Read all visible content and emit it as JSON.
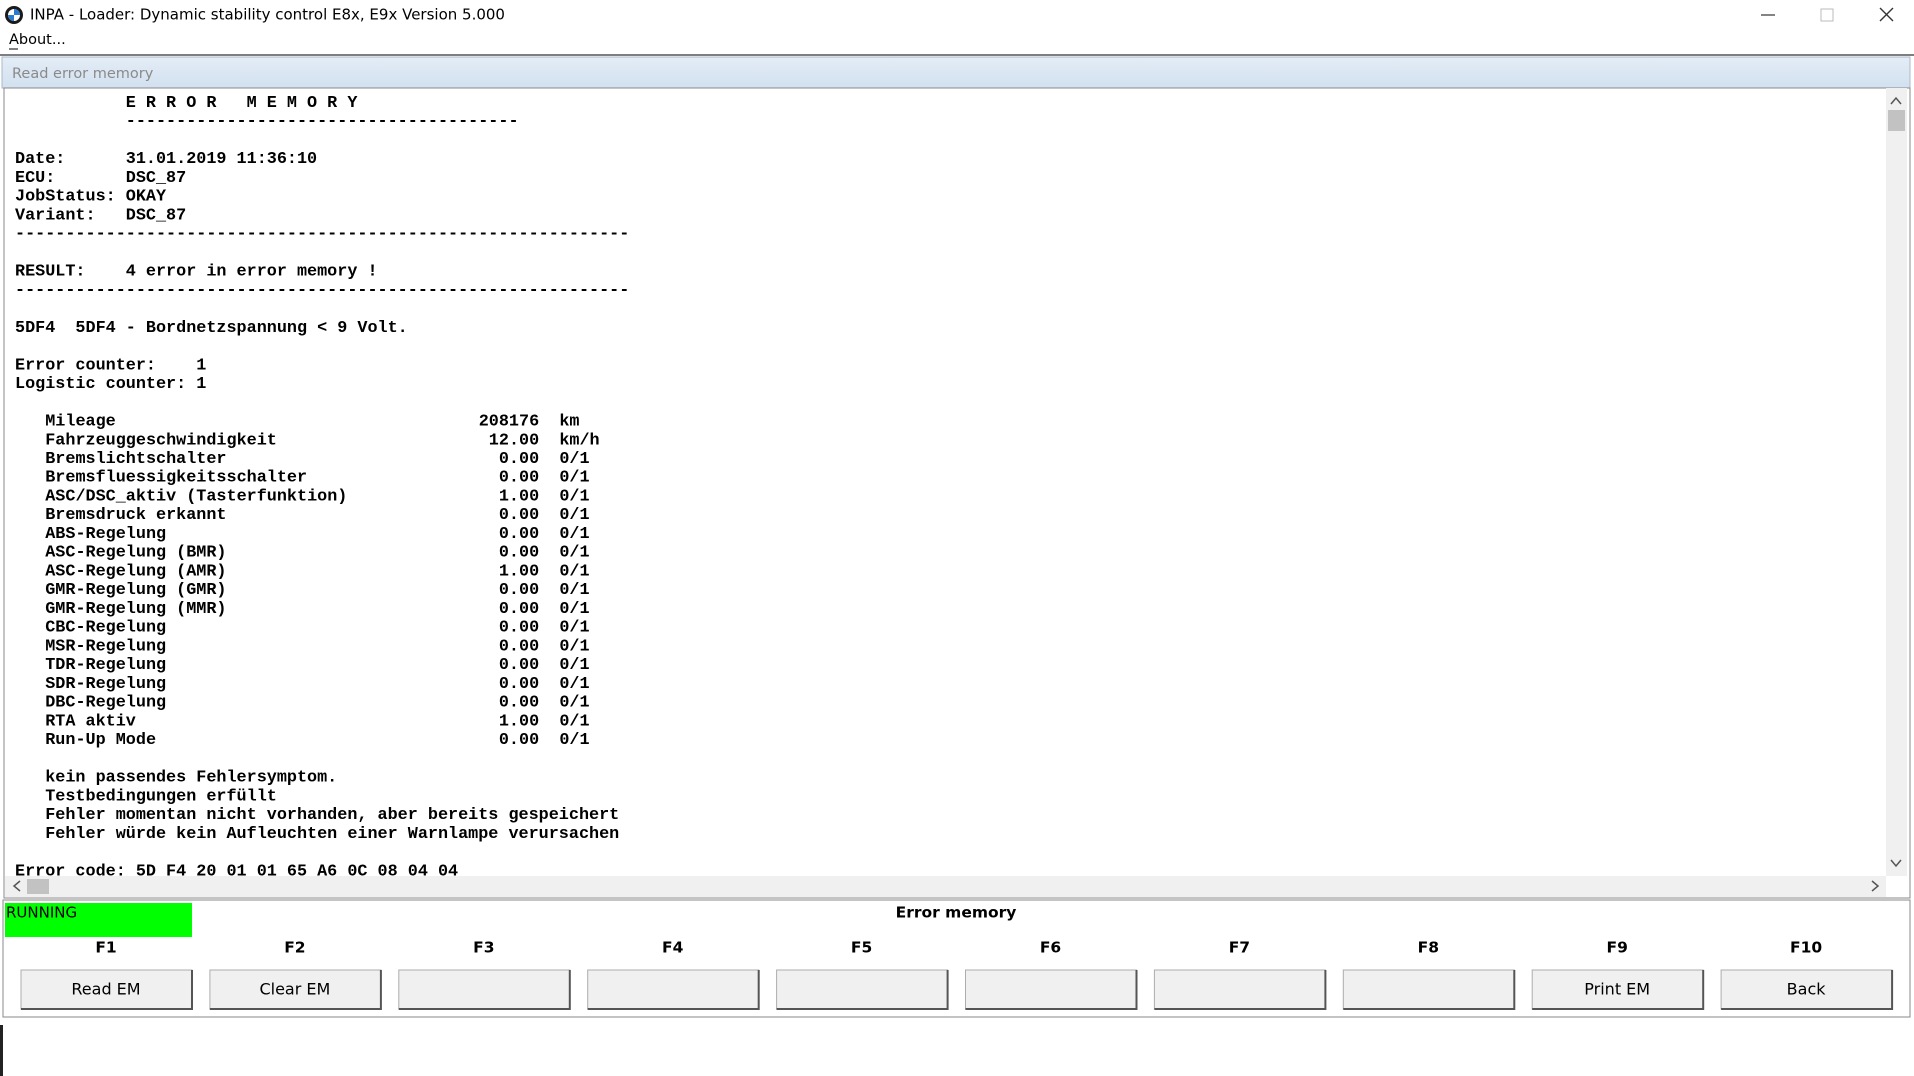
{
  "window": {
    "title": "INPA - Loader:  Dynamic stability control E8x, E9x Version 5.000",
    "menu": "About..."
  },
  "panel": {
    "title": "Read error memory"
  },
  "report": {
    "blocks": [
      {
        "lines": [
          "           E R R O R   M E M O R Y",
          "           ---------------------------------------"
        ]
      },
      {
        "lines": [
          "Date:      31.01.2019 11:36:10",
          "ECU:       DSC_87",
          "JobStatus: OKAY",
          "Variant:   DSC_87",
          "-------------------------------------------------------------"
        ]
      },
      {
        "lines": [
          "RESULT:    4 error in error memory !",
          "-------------------------------------------------------------"
        ]
      },
      {
        "lines": [
          "5DF4  5DF4 - Bordnetzspannung < 9 Volt."
        ]
      },
      {
        "lines": [
          "Error counter:    1",
          "Logistic counter: 1"
        ]
      },
      {
        "rows": [
          [
            "Mileage",
            "208176",
            "km"
          ],
          [
            "Fahrzeuggeschwindigkeit",
            "12.00",
            "km/h"
          ],
          [
            "Bremslichtschalter",
            "0.00",
            "0/1"
          ],
          [
            "Bremsfluessigkeitsschalter",
            "0.00",
            "0/1"
          ],
          [
            "ASC/DSC_aktiv (Tasterfunktion)",
            "1.00",
            "0/1"
          ],
          [
            "Bremsdruck erkannt",
            "0.00",
            "0/1"
          ],
          [
            "ABS-Regelung",
            "0.00",
            "0/1"
          ],
          [
            "ASC-Regelung (BMR)",
            "0.00",
            "0/1"
          ],
          [
            "ASC-Regelung (AMR)",
            "1.00",
            "0/1"
          ],
          [
            "GMR-Regelung (GMR)",
            "0.00",
            "0/1"
          ],
          [
            "GMR-Regelung (MMR)",
            "0.00",
            "0/1"
          ],
          [
            "CBC-Regelung",
            "0.00",
            "0/1"
          ],
          [
            "MSR-Regelung",
            "0.00",
            "0/1"
          ],
          [
            "TDR-Regelung",
            "0.00",
            "0/1"
          ],
          [
            "SDR-Regelung",
            "0.00",
            "0/1"
          ],
          [
            "DBC-Regelung",
            "0.00",
            "0/1"
          ],
          [
            "RTA aktiv",
            "1.00",
            "0/1"
          ],
          [
            "Run-Up Mode",
            "0.00",
            "0/1"
          ]
        ]
      },
      {
        "lines": [
          "   kein passendes Fehlersymptom.",
          "   Testbedingungen erfüllt",
          "   Fehler momentan nicht vorhanden, aber bereits gespeichert",
          "   Fehler würde kein Aufleuchten einer Warnlampe verursachen"
        ]
      },
      {
        "lines": [
          "Error code: 5D F4 20 01 01 65 A6 0C 08 04 04"
        ]
      }
    ]
  },
  "status": {
    "state": "RUNNING",
    "caption": "Error memory"
  },
  "function_keys": [
    {
      "key": "F1",
      "label": "Read EM"
    },
    {
      "key": "F2",
      "label": "Clear EM"
    },
    {
      "key": "F3"
    },
    {
      "key": "F4"
    },
    {
      "key": "F5"
    },
    {
      "key": "F6"
    },
    {
      "key": "F7"
    },
    {
      "key": "F8"
    },
    {
      "key": "F9",
      "label": "Print EM"
    },
    {
      "key": "F10",
      "label": "Back"
    }
  ]
}
